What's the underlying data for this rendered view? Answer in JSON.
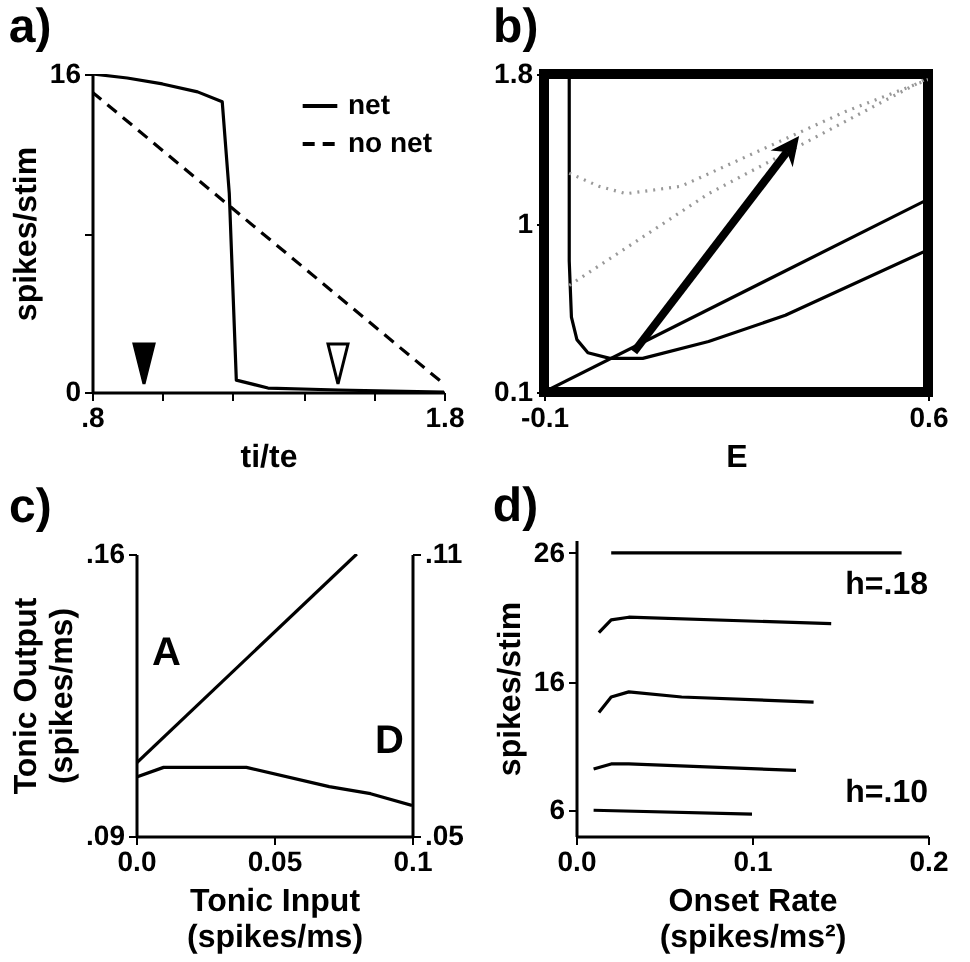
{
  "chart_data": [
    {
      "type": "line",
      "title": "a)",
      "xlabel": "ti/te",
      "ylabel": "spikes/stim",
      "xlim": [
        0.8,
        1.8
      ],
      "ylim": [
        0,
        16
      ],
      "xticks": [
        {
          "value": 0.8,
          "label": ".8"
        },
        {
          "value": 1.0,
          "label": null
        },
        {
          "value": 1.2,
          "label": null
        },
        {
          "value": 1.4,
          "label": null
        },
        {
          "value": 1.6,
          "label": null
        },
        1.8
      ],
      "yticks": [
        0,
        {
          "value": 8,
          "label": null
        },
        16
      ],
      "legend": "top right",
      "series": [
        {
          "name": "net",
          "color": "#000000",
          "line_style": "solid",
          "x": [
            0.8,
            0.9,
            1.0,
            1.1,
            1.17,
            1.19,
            1.21,
            1.3,
            1.5,
            1.8
          ],
          "values": [
            16,
            15.8,
            15.5,
            15.1,
            14.6,
            10,
            0.6,
            0.2,
            0.1,
            0
          ]
        },
        {
          "name": "no net",
          "color": "#000000",
          "line_style": "dashed",
          "x": [
            0.8,
            1.8
          ],
          "values": [
            15.1,
            0.4
          ]
        }
      ]
    },
    {
      "type": "line",
      "title": "b)",
      "xlabel": "E",
      "xlim": [
        -0.1,
        0.6
      ],
      "ylim": [
        0.1,
        1.8
      ],
      "xticks": [
        -0.1,
        0.6
      ],
      "yticks": [
        0.1,
        1,
        1.8
      ],
      "series": [
        {
          "color": "#000000",
          "line_style": "solid",
          "x": [
            -0.054,
            -0.054,
            -0.05,
            -0.04,
            -0.02,
            0.02,
            0.08,
            0.2,
            0.34,
            0.6
          ],
          "values": [
            1.8,
            0.8,
            0.5,
            0.38,
            0.31,
            0.28,
            0.28,
            0.37,
            0.51,
            0.86
          ]
        },
        {
          "color": "#000000",
          "line_style": "solid",
          "x": [
            -0.1,
            0.6
          ],
          "values": [
            0.1,
            1.13
          ]
        },
        {
          "color": "#999999",
          "line_style": "dotted",
          "x": [
            -0.054,
            0.0,
            0.05,
            0.15,
            0.3,
            0.45,
            0.6
          ],
          "values": [
            1.27,
            1.2,
            1.16,
            1.2,
            1.4,
            1.6,
            1.77
          ]
        },
        {
          "color": "#999999",
          "line_style": "dotted",
          "x": [
            -0.054,
            0.2,
            0.6
          ],
          "values": [
            0.67,
            1.16,
            1.78
          ]
        }
      ]
    },
    {
      "type": "line",
      "title": "c)",
      "xlabel": "Tonic Input\n(spikes/ms)",
      "ylabel": "Tonic Output\n(spikes/ms)",
      "xlim": [
        0,
        0.1
      ],
      "ylim": [
        0.09,
        0.16
      ],
      "y2lim": [
        0.05,
        0.11
      ],
      "xticks": [
        {
          "value": 0,
          "label": "0.0"
        },
        0.05,
        0.1
      ],
      "yticks": [
        {
          "value": 0.16,
          "label": ".16"
        },
        {
          "value": 0.09,
          "label": ".09"
        }
      ],
      "y2ticks": [
        {
          "value": 0.11,
          "label": ".11"
        },
        {
          "value": 0.05,
          "label": ".05"
        }
      ],
      "series": [
        {
          "name": "A",
          "color": "#000000",
          "x": [
            0,
            0.08
          ],
          "values": [
            0.108,
            0.16
          ]
        },
        {
          "name": "D",
          "color": "#000000",
          "axis": "y2",
          "x": [
            0,
            0.01,
            0.04,
            0.07,
            0.085,
            0.1
          ],
          "values": [
            0.0625,
            0.0646,
            0.0646,
            0.0605,
            0.059,
            0.0565
          ]
        }
      ]
    },
    {
      "type": "line",
      "title": "d)",
      "xlabel": "Onset Rate\n(spikes/ms²)",
      "ylabel": "spikes/stim",
      "xlim": [
        0,
        0.2
      ],
      "ylim": [
        4,
        27
      ],
      "xticks": [
        {
          "value": 0,
          "label": "0.0"
        },
        0.1,
        0.2
      ],
      "yticks": [
        6,
        16,
        26
      ],
      "annotations": [
        "h=.18",
        "h=.10"
      ],
      "series": [
        {
          "color": "#000000",
          "x": [
            0.02,
            0.185
          ],
          "values": [
            26,
            26
          ]
        },
        {
          "color": "#000000",
          "x": [
            0.013,
            0.02,
            0.03,
            0.145
          ],
          "values": [
            19.8,
            20.8,
            21,
            20.5
          ]
        },
        {
          "color": "#000000",
          "x": [
            0.013,
            0.02,
            0.03,
            0.06,
            0.135
          ],
          "values": [
            13.6,
            14.8,
            15.2,
            14.8,
            14.4
          ]
        },
        {
          "color": "#000000",
          "x": [
            0.01,
            0.02,
            0.03,
            0.125
          ],
          "values": [
            9.2,
            9.6,
            9.6,
            9.1
          ]
        },
        {
          "color": "#000000",
          "x": [
            0.01,
            0.1
          ],
          "values": [
            6,
            5.7
          ]
        }
      ]
    }
  ]
}
